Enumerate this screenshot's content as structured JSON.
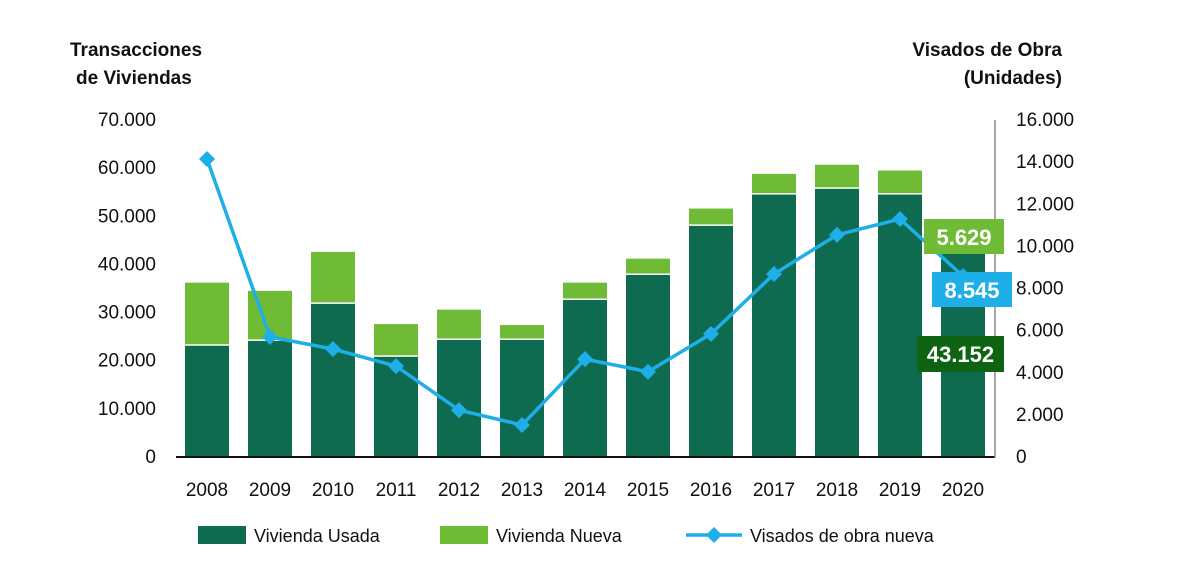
{
  "chart_data": {
    "type": "bar",
    "stacked": true,
    "categories": [
      "2008",
      "2009",
      "2010",
      "2011",
      "2012",
      "2013",
      "2014",
      "2015",
      "2016",
      "2017",
      "2018",
      "2019",
      "2020"
    ],
    "left_axis_title": [
      "Transacciones",
      "de Viviendas"
    ],
    "right_axis_title": [
      "Visados de Obra",
      "(Unidades)"
    ],
    "left_ylim": [
      0,
      70000
    ],
    "left_ticks": [
      "0",
      "10.000",
      "20.000",
      "30.000",
      "40.000",
      "50.000",
      "60.000",
      "70.000"
    ],
    "right_ylim": [
      0,
      16000
    ],
    "right_ticks": [
      "0",
      "2.000",
      "4.000",
      "6.000",
      "8.000",
      "10.000",
      "12.000",
      "14.000",
      "16.000"
    ],
    "grid": false,
    "legend_position": "bottom",
    "series": [
      {
        "name": "Vivienda Usada",
        "type": "bar",
        "axis": "left",
        "color": "#0e6b4f",
        "values": [
          22900,
          23900,
          31600,
          20600,
          24100,
          24100,
          32400,
          37600,
          47800,
          54300,
          55500,
          54300,
          43152
        ]
      },
      {
        "name": "Vivienda Nueva",
        "type": "bar",
        "axis": "left",
        "color": "#6fbb36",
        "values": [
          13100,
          10400,
          10800,
          6800,
          6300,
          3100,
          3600,
          3400,
          3600,
          4300,
          5000,
          5000,
          5629
        ]
      },
      {
        "name": "Visados de obra nueva",
        "type": "line",
        "axis": "right",
        "color": "#1eaee8",
        "values": [
          14100,
          5650,
          5080,
          4270,
          2180,
          1470,
          4600,
          4000,
          5800,
          8640,
          10500,
          11250,
          8545
        ]
      }
    ],
    "annotations": [
      {
        "text": "5.629",
        "color": "#6fbb36"
      },
      {
        "text": "8.545",
        "color": "#1eaee8"
      },
      {
        "text": "43.152",
        "color": "#0f6413"
      }
    ]
  }
}
